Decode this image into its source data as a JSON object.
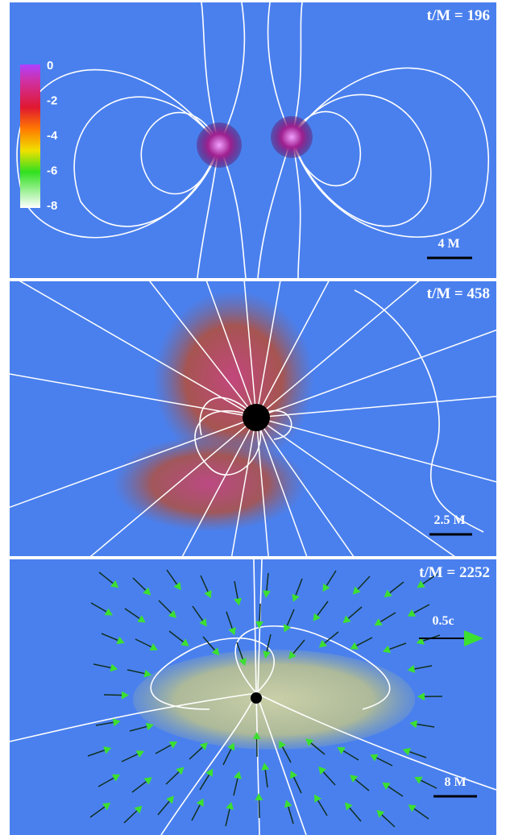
{
  "panels": [
    {
      "time_label": "t/M = 196",
      "scale_label": "4 M",
      "colorbar": {
        "ticks": [
          "0",
          "-2",
          "-4",
          "-6",
          "-8"
        ]
      }
    },
    {
      "time_label": "t/M = 458",
      "scale_label": "2.5 M"
    },
    {
      "time_label": "t/M = 2252",
      "velocity_label": "0.5c",
      "scale_label": "8 M"
    }
  ]
}
